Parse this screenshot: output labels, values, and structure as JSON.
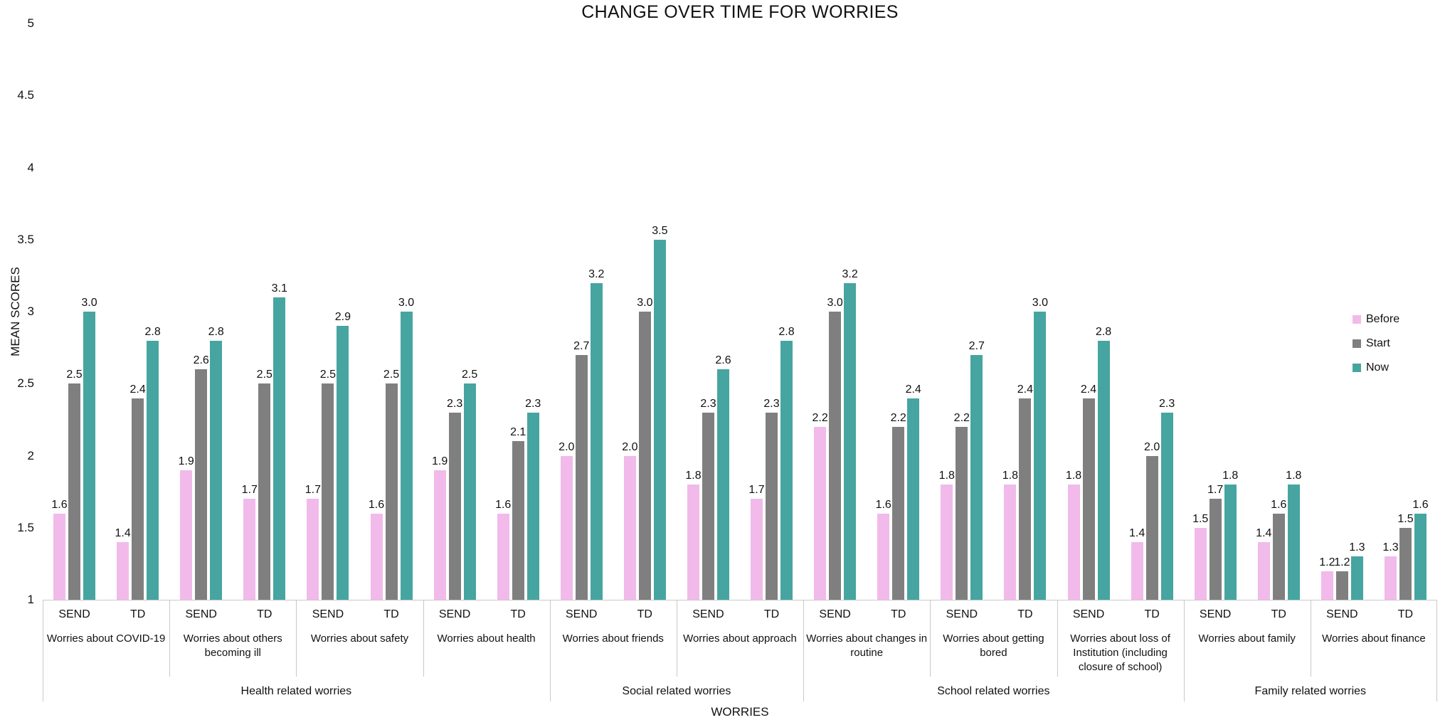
{
  "title": "CHANGE OVER TIME FOR WORRIES",
  "axes": {
    "y_label": "MEAN SCORES",
    "x_label": "WORRIES",
    "y_tick_labels": [
      "5",
      "4.5",
      "4",
      "3.5",
      "3",
      "2.5",
      "2",
      "1.5",
      "1"
    ],
    "y_min": 1,
    "y_max": 5
  },
  "legend": {
    "position": "right",
    "items": [
      "Before",
      "Start",
      "Now"
    ]
  },
  "chart_data": {
    "type": "bar",
    "title": "CHANGE OVER TIME FOR WORRIES",
    "xlabel": "WORRIES",
    "ylabel": "MEAN SCORES",
    "ylim": [
      1,
      5
    ],
    "grid": false,
    "value_label_format": "0.0",
    "series": [
      {
        "name": "Before",
        "color": "#F1BAEA"
      },
      {
        "name": "Start",
        "color": "#7F7F7F"
      },
      {
        "name": "Now",
        "color": "#46A5A0"
      }
    ],
    "groups": [
      {
        "label": "Health related worries",
        "subcategories": [
          {
            "label": "Worries about COVID-19",
            "clusters": [
              {
                "label": "SEND",
                "values": [
                  1.6,
                  2.5,
                  3.0
                ]
              },
              {
                "label": "TD",
                "values": [
                  1.4,
                  2.4,
                  2.8
                ]
              }
            ]
          },
          {
            "label": "Worries about others becoming ill",
            "clusters": [
              {
                "label": "SEND",
                "values": [
                  1.9,
                  2.6,
                  2.8
                ]
              },
              {
                "label": "TD",
                "values": [
                  1.7,
                  2.5,
                  3.1
                ]
              }
            ]
          },
          {
            "label": "Worries about safety",
            "clusters": [
              {
                "label": "SEND",
                "values": [
                  1.7,
                  2.5,
                  2.9
                ]
              },
              {
                "label": "TD",
                "values": [
                  1.6,
                  2.5,
                  3.0
                ]
              }
            ]
          },
          {
            "label": "Worries about health",
            "clusters": [
              {
                "label": "SEND",
                "values": [
                  1.9,
                  2.3,
                  2.5
                ]
              },
              {
                "label": "TD",
                "values": [
                  1.6,
                  2.1,
                  2.3
                ]
              }
            ]
          }
        ]
      },
      {
        "label": "Social related worries",
        "subcategories": [
          {
            "label": "Worries about friends",
            "clusters": [
              {
                "label": "SEND",
                "values": [
                  2.0,
                  2.7,
                  3.2
                ]
              },
              {
                "label": "TD",
                "values": [
                  2.0,
                  3.0,
                  3.5
                ]
              }
            ]
          },
          {
            "label": "Worries about approach",
            "clusters": [
              {
                "label": "SEND",
                "values": [
                  1.8,
                  2.3,
                  2.6
                ]
              },
              {
                "label": "TD",
                "values": [
                  1.7,
                  2.3,
                  2.8
                ]
              }
            ]
          }
        ]
      },
      {
        "label": "School related worries",
        "subcategories": [
          {
            "label": "Worries about changes in routine",
            "clusters": [
              {
                "label": "SEND",
                "values": [
                  2.2,
                  3.0,
                  3.2
                ]
              },
              {
                "label": "TD",
                "values": [
                  1.6,
                  2.2,
                  2.4
                ]
              }
            ]
          },
          {
            "label": "Worries about getting bored",
            "clusters": [
              {
                "label": "SEND",
                "values": [
                  1.8,
                  2.2,
                  2.7
                ]
              },
              {
                "label": "TD",
                "values": [
                  1.8,
                  2.4,
                  3.0
                ]
              }
            ]
          },
          {
            "label": "Worries about loss of Institution (including closure of school)",
            "clusters": [
              {
                "label": "SEND",
                "values": [
                  1.8,
                  2.4,
                  2.8
                ]
              },
              {
                "label": "TD",
                "values": [
                  1.4,
                  2.0,
                  2.3
                ]
              }
            ]
          }
        ]
      },
      {
        "label": "Family related worries",
        "subcategories": [
          {
            "label": "Worries about family",
            "clusters": [
              {
                "label": "SEND",
                "values": [
                  1.5,
                  1.7,
                  1.8
                ]
              },
              {
                "label": "TD",
                "values": [
                  1.4,
                  1.6,
                  1.8
                ]
              }
            ]
          },
          {
            "label": "Worries about finance",
            "clusters": [
              {
                "label": "SEND",
                "values": [
                  1.2,
                  1.2,
                  1.3
                ]
              },
              {
                "label": "TD",
                "values": [
                  1.3,
                  1.5,
                  1.6
                ]
              }
            ]
          }
        ]
      }
    ]
  }
}
